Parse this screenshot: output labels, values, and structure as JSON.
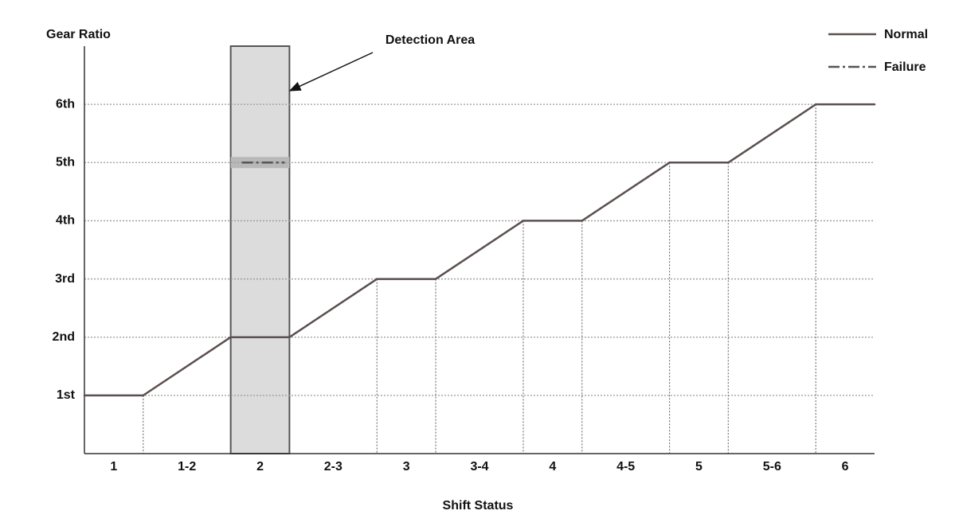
{
  "chart_data": {
    "type": "line",
    "y_label": "Gear Ratio",
    "x_label": "Shift Status",
    "annotation": "Detection Area",
    "categories": [
      "1",
      "1-2",
      "2",
      "2-3",
      "3",
      "3-4",
      "4",
      "4-5",
      "5",
      "5-6",
      "6"
    ],
    "series": [
      {
        "name": "Normal",
        "color": "#5b4f4f",
        "style": "solid",
        "values": [
          1,
          1.5,
          2,
          2.5,
          3,
          3.5,
          4,
          4.5,
          5,
          5.5,
          6
        ]
      },
      {
        "name": "Failure",
        "color": "#555555",
        "style": "dashdot",
        "values": [
          null,
          null,
          5,
          null,
          null,
          null,
          null,
          null,
          null,
          null,
          null
        ]
      }
    ],
    "ylim": [
      0,
      7
    ],
    "yticks": [
      {
        "value": 1,
        "label": "1st"
      },
      {
        "value": 2,
        "label": "2nd"
      },
      {
        "value": 3,
        "label": "3rd"
      },
      {
        "value": 4,
        "label": "4th"
      },
      {
        "value": 5,
        "label": "5th"
      },
      {
        "value": 6,
        "label": "6th"
      }
    ],
    "grid": true,
    "legend": "upper right"
  }
}
